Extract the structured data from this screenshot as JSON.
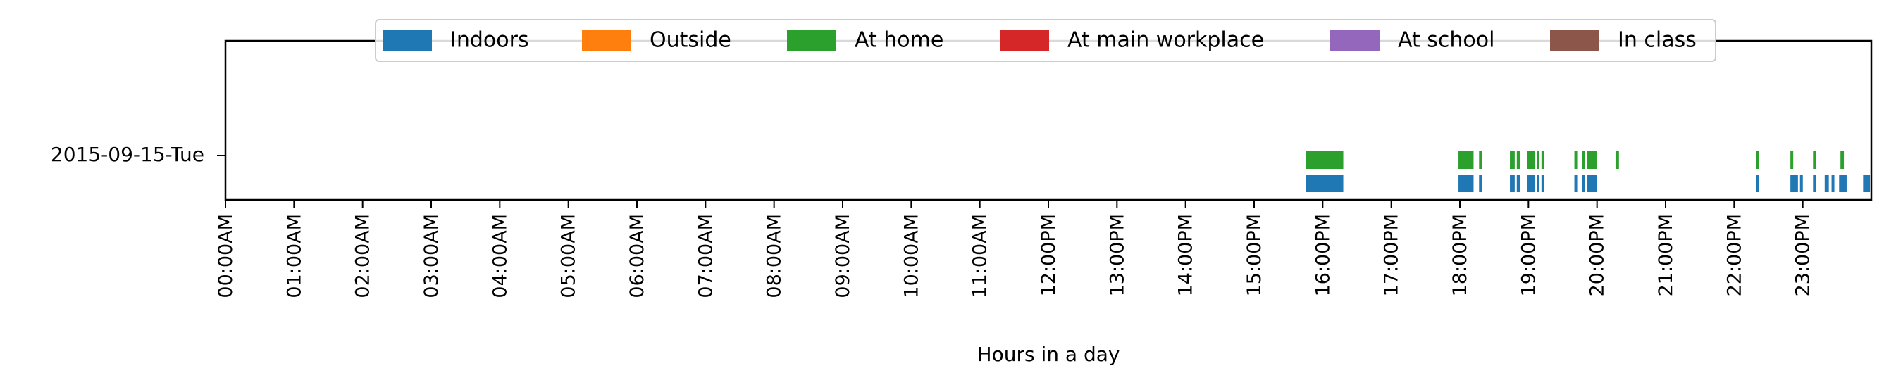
{
  "chart_data": {
    "type": "timeline",
    "xlabel": "Hours in a day",
    "xlim": [
      0,
      24
    ],
    "x_ticks": [
      "00:00AM",
      "01:00AM",
      "02:00AM",
      "03:00AM",
      "04:00AM",
      "05:00AM",
      "06:00AM",
      "07:00AM",
      "08:00AM",
      "09:00AM",
      "10:00AM",
      "11:00AM",
      "12:00PM",
      "13:00PM",
      "14:00PM",
      "15:00PM",
      "16:00PM",
      "17:00PM",
      "18:00PM",
      "19:00PM",
      "20:00PM",
      "21:00PM",
      "22:00PM",
      "23:00PM"
    ],
    "categories": [
      "2015-09-15-Tue"
    ],
    "legend_position": "top-center",
    "grid": false,
    "series": [
      {
        "name": "Indoors",
        "color": "#1f77b4",
        "intervals": [
          [
            15.75,
            16.3
          ],
          [
            17.98,
            18.2
          ],
          [
            18.28,
            18.32
          ],
          [
            18.73,
            18.8
          ],
          [
            18.83,
            18.88
          ],
          [
            18.98,
            19.1
          ],
          [
            19.12,
            19.15
          ],
          [
            19.19,
            19.23
          ],
          [
            19.67,
            19.7
          ],
          [
            19.78,
            19.82
          ],
          [
            19.85,
            20.0
          ],
          [
            22.32,
            22.35
          ],
          [
            22.82,
            22.93
          ],
          [
            22.96,
            22.99
          ],
          [
            23.15,
            23.18
          ],
          [
            23.32,
            23.38
          ],
          [
            23.42,
            23.46
          ],
          [
            23.53,
            23.64
          ],
          [
            23.88,
            23.98
          ]
        ]
      },
      {
        "name": "Outside",
        "color": "#ff7f0e",
        "intervals": []
      },
      {
        "name": "At home",
        "color": "#2ca02c",
        "intervals": [
          [
            15.75,
            16.3
          ],
          [
            17.98,
            18.2
          ],
          [
            18.28,
            18.32
          ],
          [
            18.73,
            18.8
          ],
          [
            18.83,
            18.88
          ],
          [
            18.98,
            19.1
          ],
          [
            19.12,
            19.15
          ],
          [
            19.19,
            19.23
          ],
          [
            19.67,
            19.7
          ],
          [
            19.78,
            19.82
          ],
          [
            19.85,
            20.0
          ],
          [
            20.27,
            20.32
          ],
          [
            22.32,
            22.35
          ],
          [
            22.82,
            22.85
          ],
          [
            23.15,
            23.18
          ],
          [
            23.55,
            23.6
          ]
        ]
      },
      {
        "name": "At main workplace",
        "color": "#d62728",
        "intervals": []
      },
      {
        "name": "At school",
        "color": "#9467bd",
        "intervals": []
      },
      {
        "name": "In class",
        "color": "#8c564b",
        "intervals": []
      }
    ]
  }
}
